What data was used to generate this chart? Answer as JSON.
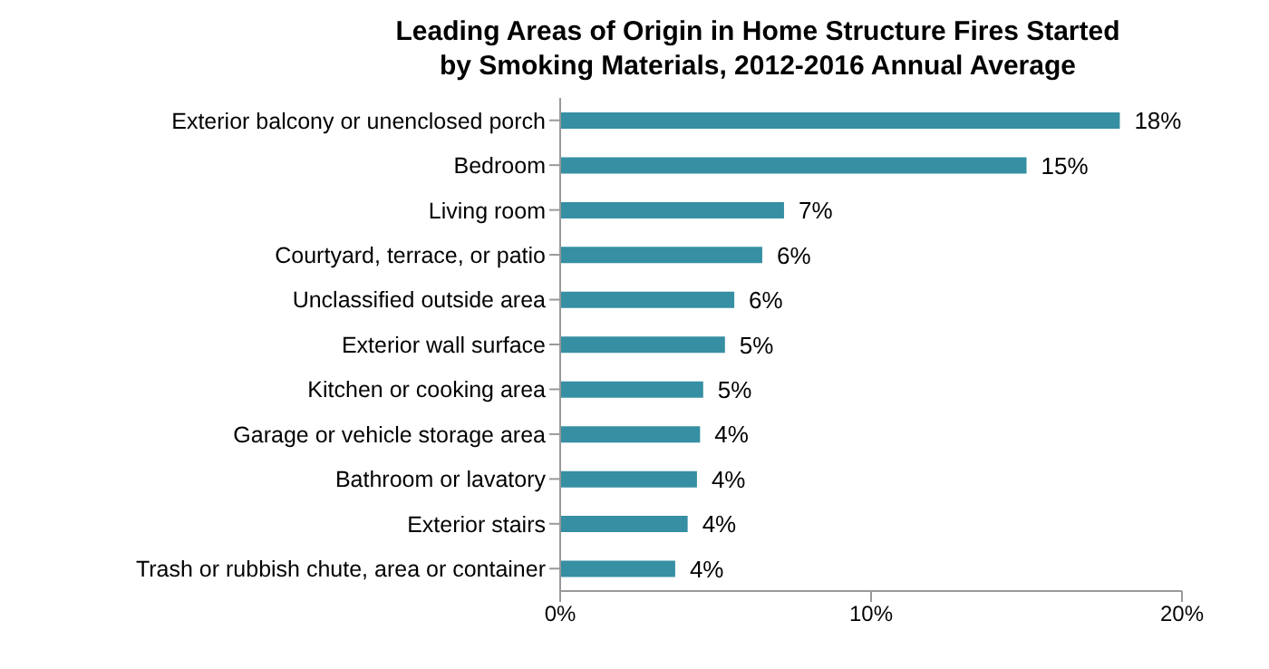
{
  "chart_data": {
    "type": "bar",
    "orientation": "horizontal",
    "title": "Leading Areas of Origin in Home Structure Fires Started by Smoking Materials, 2012-2016 Annual Average",
    "categories": [
      "Exterior balcony or unenclosed porch",
      "Bedroom",
      "Living room",
      "Courtyard, terrace, or patio",
      "Unclassified outside area",
      "Exterior wall surface",
      "Kitchen or cooking area",
      "Garage or vehicle storage area",
      "Bathroom or lavatory",
      "Exterior stairs",
      "Trash or rubbish chute, area or container"
    ],
    "values": [
      18.0,
      15.0,
      7.2,
      6.5,
      5.6,
      5.3,
      4.6,
      4.5,
      4.4,
      4.1,
      3.7
    ],
    "value_labels": [
      "18%",
      "15%",
      "7%",
      "6%",
      "6%",
      "5%",
      "5%",
      "4%",
      "4%",
      "4%",
      "4%"
    ],
    "color": "#368fa3",
    "xlim": [
      0,
      20
    ],
    "xticks": [
      {
        "value": 0,
        "label": "0%"
      },
      {
        "value": 10,
        "label": "10%"
      },
      {
        "value": 20,
        "label": "20%"
      }
    ],
    "grid": false,
    "legend": false
  }
}
